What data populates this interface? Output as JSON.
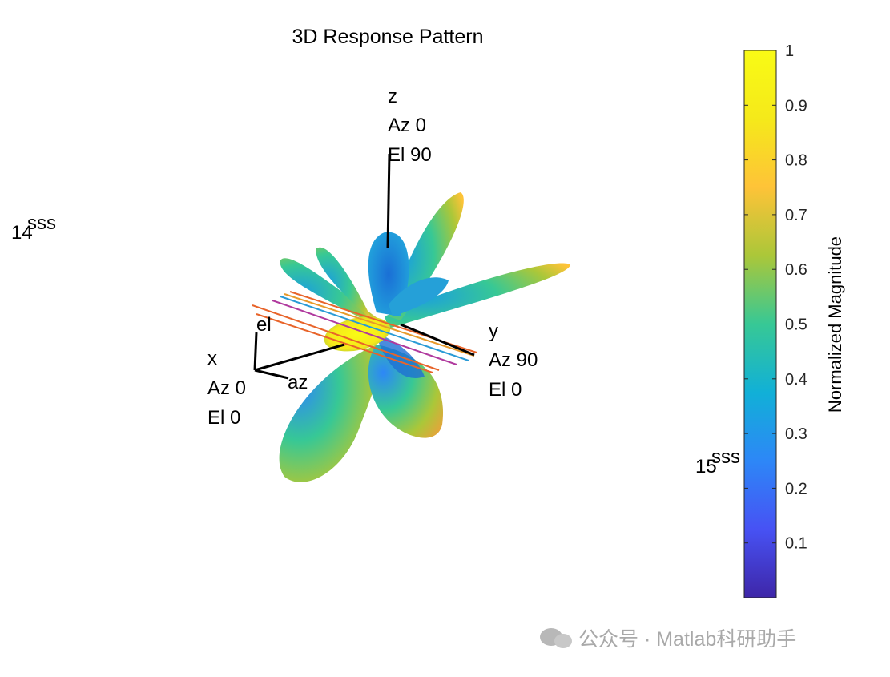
{
  "chart_data": {
    "type": "surface3d",
    "title": "3D Response Pattern",
    "colorbar": {
      "label": "Normalized Magnitude",
      "lim": [
        0,
        1
      ],
      "ticks": [
        0.1,
        0.2,
        0.3,
        0.4,
        0.5,
        0.6,
        0.7,
        0.8,
        0.9,
        1
      ],
      "colormap": [
        "#3e26a8",
        "#4752f4",
        "#2d87f7",
        "#11b0d7",
        "#37c895",
        "#abc739",
        "#fec338",
        "#f5e91a",
        "#f9fb15"
      ]
    },
    "annotations": {
      "z_axis": [
        "z",
        "Az 0",
        "El 90"
      ],
      "y_axis": [
        "y",
        "Az 90",
        "El 0"
      ],
      "x_axis": [
        "x",
        "Az 0",
        "El 0"
      ],
      "el": "el",
      "az": "az",
      "left_a": "14",
      "left_b": "sss",
      "right_a": "15",
      "right_b": "sss"
    },
    "watermark": "公众号 · Matlab科研助手"
  }
}
